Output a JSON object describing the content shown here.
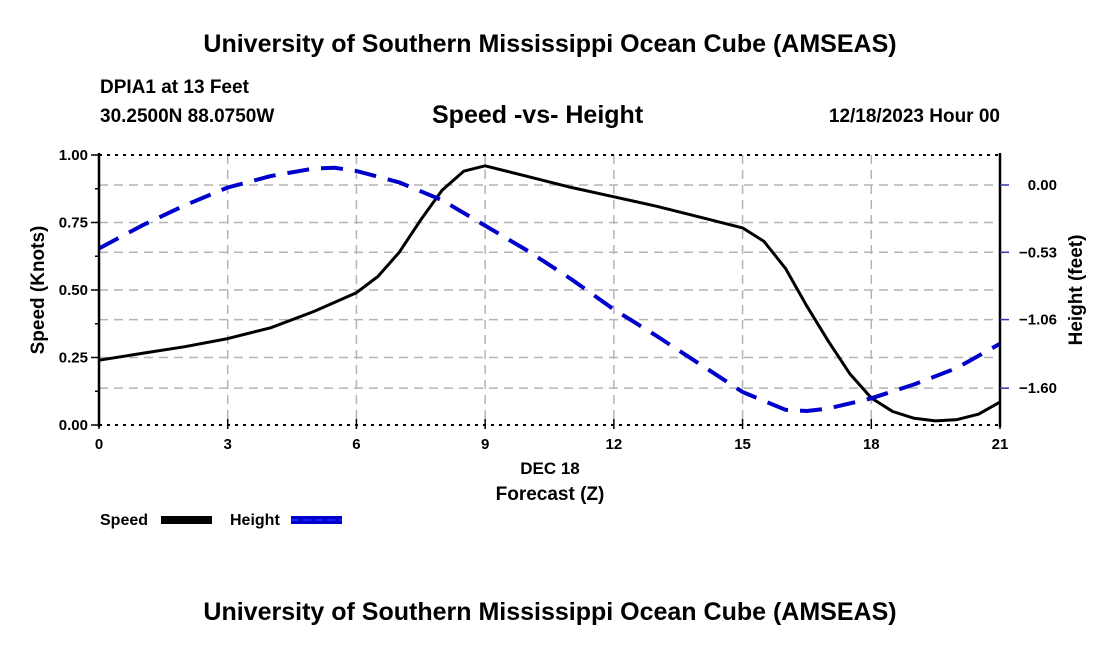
{
  "header": {
    "title": "University of Southern Mississippi Ocean Cube (AMSEAS)",
    "station": "DPIA1 at 13 Feet",
    "coords": "30.2500N  88.0750W",
    "subtitle": "Speed -vs- Height",
    "datetime": "12/18/2023 Hour 00"
  },
  "footer": {
    "title": "University of Southern Mississippi Ocean Cube (AMSEAS)"
  },
  "chart_data": {
    "type": "line",
    "title": "Speed -vs- Height",
    "xlabel": "Forecast (Z)",
    "xlabel_date": "DEC 18",
    "ylabel": "Speed (Knots)",
    "y2label": "Height (feet)",
    "xlim": [
      0,
      21
    ],
    "ylim": [
      0,
      1.0
    ],
    "y2lim": [
      -1.89,
      0.236
    ],
    "x_ticks": [
      0,
      3,
      6,
      9,
      12,
      15,
      18,
      21
    ],
    "x_tick_labels": [
      "0",
      "3",
      "6",
      "9",
      "12",
      "15",
      "18",
      "21"
    ],
    "y_ticks": [
      0.0,
      0.25,
      0.5,
      0.75,
      1.0
    ],
    "y_tick_labels": [
      "0.00",
      "0.25",
      "0.50",
      "0.75",
      "1.00"
    ],
    "y2_ticks": [
      0.0,
      -0.53,
      -1.06,
      -1.6
    ],
    "y2_tick_labels": [
      "0.00",
      "−0.53",
      "−1.06",
      "−1.60"
    ],
    "grid": true,
    "legend_position": "bottom-left",
    "series": [
      {
        "name": "Speed",
        "axis": "left",
        "color": "#000000",
        "style": "solid",
        "x": [
          0,
          1,
          2,
          3,
          4,
          5,
          6,
          6.5,
          7,
          7.5,
          8,
          8.5,
          9,
          10,
          11,
          12,
          13,
          14,
          15,
          15.5,
          16,
          16.5,
          17,
          17.5,
          18,
          18.5,
          19,
          19.5,
          20,
          20.5,
          21
        ],
        "values": [
          0.24,
          0.265,
          0.29,
          0.32,
          0.36,
          0.42,
          0.49,
          0.55,
          0.64,
          0.76,
          0.87,
          0.94,
          0.96,
          0.92,
          0.88,
          0.845,
          0.81,
          0.77,
          0.73,
          0.68,
          0.58,
          0.44,
          0.31,
          0.19,
          0.1,
          0.05,
          0.025,
          0.015,
          0.02,
          0.04,
          0.085
        ]
      },
      {
        "name": "Height",
        "axis": "right",
        "color": "#0000cc",
        "style": "dashed",
        "x": [
          0,
          1,
          2,
          3,
          4,
          5,
          5.5,
          6,
          7,
          8,
          9,
          10,
          11,
          12,
          13,
          14,
          15,
          16,
          16.5,
          17,
          18,
          19,
          20,
          21
        ],
        "values": [
          -0.5,
          -0.32,
          -0.16,
          -0.02,
          0.07,
          0.13,
          0.135,
          0.11,
          0.02,
          -0.12,
          -0.32,
          -0.52,
          -0.74,
          -0.98,
          -1.19,
          -1.41,
          -1.63,
          -1.77,
          -1.78,
          -1.76,
          -1.68,
          -1.57,
          -1.44,
          -1.25
        ]
      }
    ]
  }
}
